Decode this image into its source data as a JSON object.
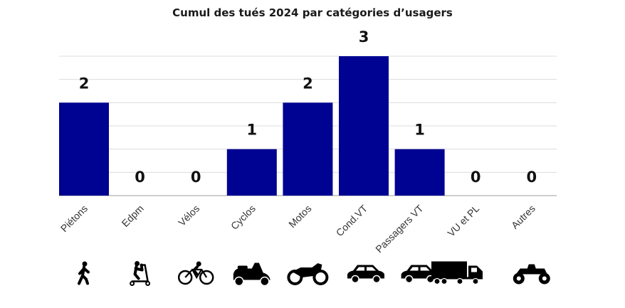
{
  "chart_data": {
    "type": "bar",
    "title": "Cumul des tués 2024 par catégories d’usagers",
    "categories": [
      "Piétons",
      "Edpm",
      "Vélos",
      "Cyclos",
      "Motos",
      "Cond.VT",
      "Passagers VT",
      "VU et PL",
      "Autres"
    ],
    "values": [
      2,
      0,
      0,
      1,
      2,
      3,
      1,
      0,
      0
    ],
    "xlabel": "",
    "ylabel": "",
    "ylim": [
      0,
      3
    ],
    "grid": true,
    "legend": "none",
    "bar_color": "#000391",
    "icons": [
      "pedestrian-icon",
      "scooter-icon",
      "bicycle-icon",
      "moped-icon",
      "motorcycle-icon",
      "car-icon",
      "car-icon",
      "truck-icon",
      "quad-icon"
    ]
  }
}
